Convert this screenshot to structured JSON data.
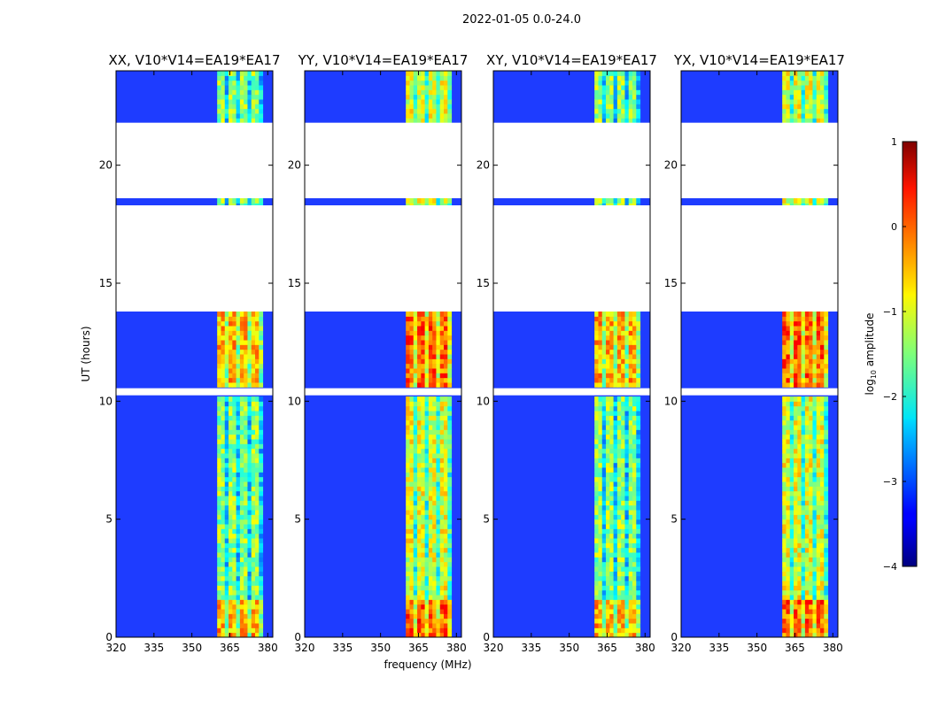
{
  "figure": {
    "suptitle": "2022-01-05 0.0-24.0"
  },
  "chart_data": {
    "type": "heatmap",
    "xlabel": "frequency (MHz)",
    "ylabel": "UT (hours)",
    "xlim": [
      320,
      382
    ],
    "ylim": [
      0,
      24
    ],
    "xticks": [
      320,
      335,
      350,
      365,
      380
    ],
    "yticks": [
      0,
      5,
      10,
      15,
      20
    ],
    "panels": [
      {
        "title": "XX, V10*V14=EA19*EA17",
        "pol": "XX"
      },
      {
        "title": "YY, V10*V14=EA19*EA17",
        "pol": "YY"
      },
      {
        "title": "XY, V10*V14=EA19*EA17",
        "pol": "XY"
      },
      {
        "title": "YX, V10*V14=EA19*EA17",
        "pol": "YX"
      }
    ],
    "rfi_band_mhz": [
      360,
      378
    ],
    "gaps_hours": [
      [
        13.8,
        18.3
      ],
      [
        18.6,
        21.8
      ],
      [
        10.25,
        10.55
      ]
    ],
    "colorbar": {
      "label": "log10 amplitude",
      "label_main": "log",
      "label_sub": "10",
      "label_rest": " amplitude",
      "range": [
        -4,
        1
      ],
      "ticks": [
        1,
        0,
        -1,
        -2,
        -3,
        -4
      ],
      "tick_labels": [
        "1",
        "0",
        "−1",
        "−2",
        "−3",
        "−4"
      ],
      "colormap": "jet"
    }
  }
}
